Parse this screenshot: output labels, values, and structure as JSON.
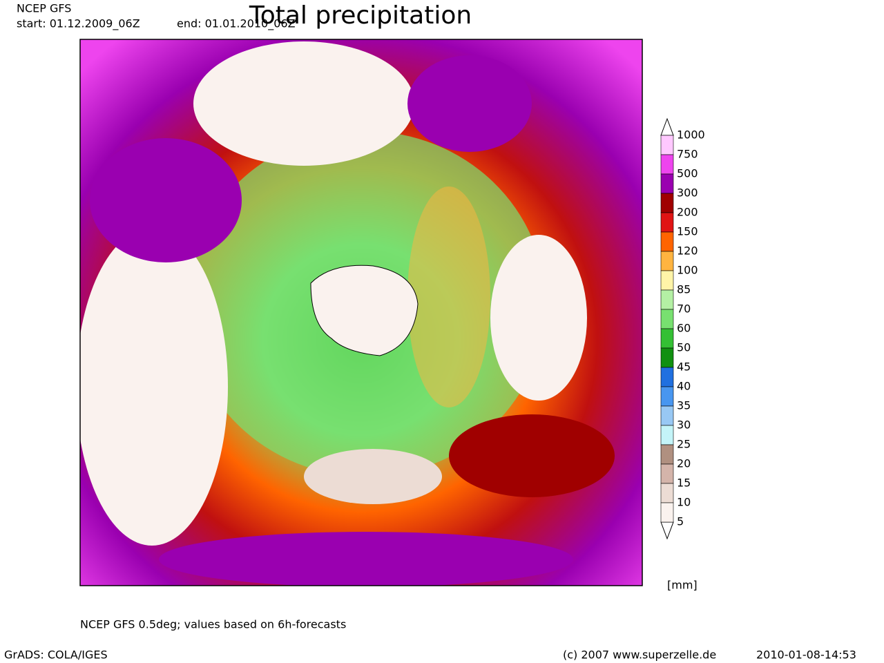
{
  "header": {
    "model": "NCEP GFS",
    "start": "start: 01.12.2009_06Z",
    "end": "end: 01.01.2010_06Z",
    "title": "Total precipitation"
  },
  "legend": {
    "unit": "[mm]",
    "bounds": [
      1000,
      750,
      500,
      300,
      200,
      150,
      120,
      100,
      85,
      70,
      60,
      50,
      45,
      40,
      35,
      30,
      25,
      20,
      15,
      10,
      5
    ],
    "colors": [
      "#ffc8ff",
      "#ee44ee",
      "#9a00b0",
      "#a00000",
      "#e01414",
      "#ff6400",
      "#ffb440",
      "#fff4a8",
      "#b4f0a4",
      "#78e070",
      "#34c034",
      "#109010",
      "#2070e0",
      "#4896f0",
      "#98c8f4",
      "#c4f4f8",
      "#b09080",
      "#d4b4aa",
      "#ecdcd4",
      "#faf2ee"
    ]
  },
  "footer": {
    "note": "NCEP GFS 0.5deg; values based on 6h-forecasts",
    "software": "GrADS: COLA/IGES",
    "copyright": "(c) 2007 www.superzelle.de",
    "timestamp": "2010-01-08-14:53"
  }
}
